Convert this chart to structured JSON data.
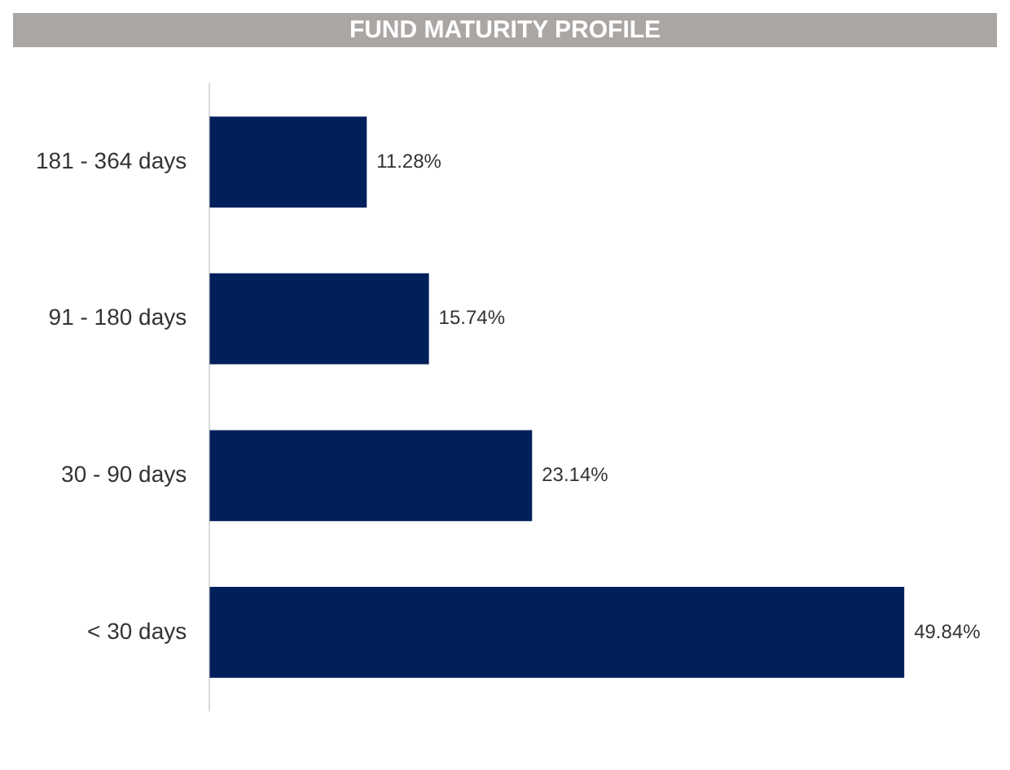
{
  "chart_data": {
    "type": "bar",
    "orientation": "horizontal",
    "title": "FUND MATURITY PROFILE",
    "categories": [
      "181 - 364 days",
      "91 - 180 days",
      "30 - 90 days",
      "< 30 days"
    ],
    "values": [
      11.28,
      15.74,
      23.14,
      49.84
    ],
    "value_labels": [
      "11.28%",
      "15.74%",
      "23.14%",
      "49.84%"
    ],
    "color": "#001f5b"
  }
}
